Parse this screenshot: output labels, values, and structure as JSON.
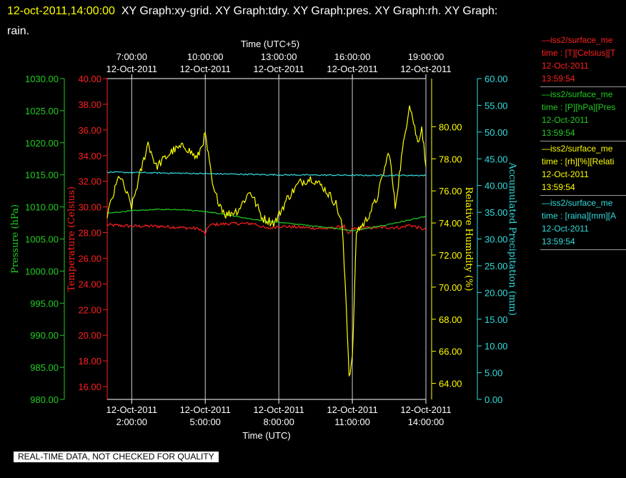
{
  "header": {
    "timestamp": "12-oct-2011,14:00:00",
    "graphs": "XY Graph:xy-grid.  XY Graph:tdry.  XY Graph:pres.  XY Graph:rh.  XY Graph:",
    "graphs_line2": "rain."
  },
  "disclaimer": "REAL-TIME DATA, NOT CHECKED FOR QUALITY",
  "legend": [
    {
      "line": "—iss2/surface_me",
      "desc": "time : [T][Celsius][T",
      "date": "12-Oct-2011",
      "time": "13:59:54",
      "color": "#ff2020"
    },
    {
      "line": "—iss2/surface_me",
      "desc": "time : [P][hPa][Pres",
      "date": "12-Oct-2011",
      "time": "13:59:54",
      "color": "#22cc22"
    },
    {
      "line": "—iss2/surface_me",
      "desc": "time : [rh][%][Relati",
      "date": "12-Oct-2011",
      "time": "13:59:54",
      "color": "#ffff00"
    },
    {
      "line": "—iss2/surface_me",
      "desc": "time : [raina][mm][A",
      "date": "12-Oct-2011",
      "time": "13:59:54",
      "color": "#33dddd"
    }
  ],
  "chart_data": {
    "type": "line",
    "grid": true,
    "x_bottom": {
      "label": "Time (UTC)",
      "range": [
        "2011-10-12 01:00",
        "2011-10-12 14:00"
      ],
      "ticks": [
        {
          "t": "2011-10-12 02:00",
          "date": "12-Oct-2011",
          "time": "2:00:00"
        },
        {
          "t": "2011-10-12 05:00",
          "date": "12-Oct-2011",
          "time": "5:00:00"
        },
        {
          "t": "2011-10-12 08:00",
          "date": "12-Oct-2011",
          "time": "8:00:00"
        },
        {
          "t": "2011-10-12 11:00",
          "date": "12-Oct-2011",
          "time": "11:00:00"
        },
        {
          "t": "2011-10-12 14:00",
          "date": "12-Oct-2011",
          "time": "14:00:00"
        }
      ]
    },
    "x_top": {
      "label": "Time (UTC+5)",
      "ticks": [
        {
          "t": "2011-10-12 02:00",
          "time": "7:00:00",
          "date": "12-Oct-2011"
        },
        {
          "t": "2011-10-12 05:00",
          "time": "10:00:00",
          "date": "12-Oct-2011"
        },
        {
          "t": "2011-10-12 08:00",
          "time": "13:00:00",
          "date": "12-Oct-2011"
        },
        {
          "t": "2011-10-12 11:00",
          "time": "16:00:00",
          "date": "12-Oct-2011"
        },
        {
          "t": "2011-10-12 14:00",
          "time": "19:00:00",
          "date": "12-Oct-2011"
        }
      ]
    },
    "y_axes": [
      {
        "id": "pressure",
        "label": "Pressure (hPa)",
        "color": "#22cc22",
        "range": [
          980,
          1030
        ],
        "ticks": [
          "980.00",
          "985.00",
          "990.00",
          "995.00",
          "1000.00",
          "1005.00",
          "1010.00",
          "1015.00",
          "1020.00",
          "1025.00",
          "1030.00"
        ]
      },
      {
        "id": "temperature",
        "label": "Temperature (Celsius)",
        "color": "#ff2020",
        "range": [
          15,
          40
        ],
        "ticks": [
          "16.00",
          "18.00",
          "20.00",
          "22.00",
          "24.00",
          "26.00",
          "28.00",
          "30.00",
          "32.00",
          "34.00",
          "36.00",
          "38.00",
          "40.00"
        ]
      },
      {
        "id": "rh",
        "label": "Relative Humidity (%)",
        "color": "#ffff00",
        "range": [
          63,
          83
        ],
        "ticks": [
          "64.00",
          "66.00",
          "68.00",
          "70.00",
          "72.00",
          "74.00",
          "76.00",
          "78.00",
          "80.00"
        ]
      },
      {
        "id": "precip",
        "label": "Accumulated Precipitation (mm)",
        "color": "#33dddd",
        "range": [
          0,
          60
        ],
        "ticks": [
          "0.00",
          "5.00",
          "10.00",
          "15.00",
          "20.00",
          "25.00",
          "30.00",
          "35.00",
          "40.00",
          "45.00",
          "50.00",
          "55.00",
          "60.00"
        ]
      }
    ],
    "series": [
      {
        "axis": "temperature",
        "color": "#ff2020",
        "noise": 0.12,
        "points": [
          [
            "2011-10-12 01:00",
            28.6
          ],
          [
            "2011-10-12 02:00",
            28.5
          ],
          [
            "2011-10-12 03:00",
            28.5
          ],
          [
            "2011-10-12 04:00",
            28.4
          ],
          [
            "2011-10-12 04:45",
            28.3
          ],
          [
            "2011-10-12 05:00",
            27.9
          ],
          [
            "2011-10-12 05:10",
            28.6
          ],
          [
            "2011-10-12 06:00",
            28.7
          ],
          [
            "2011-10-12 07:00",
            28.7
          ],
          [
            "2011-10-12 07:30",
            28.3
          ],
          [
            "2011-10-12 08:00",
            28.5
          ],
          [
            "2011-10-12 09:00",
            28.4
          ],
          [
            "2011-10-12 10:00",
            28.3
          ],
          [
            "2011-10-12 10:40",
            28.5
          ],
          [
            "2011-10-12 10:50",
            27.8
          ],
          [
            "2011-10-12 11:00",
            28.3
          ],
          [
            "2011-10-12 12:00",
            28.4
          ],
          [
            "2011-10-12 13:00",
            28.4
          ],
          [
            "2011-10-12 13:20",
            28.6
          ],
          [
            "2011-10-12 14:00",
            28.2
          ]
        ]
      },
      {
        "axis": "pressure",
        "color": "#22cc22",
        "noise": 0.04,
        "points": [
          [
            "2011-10-12 01:00",
            1009.0
          ],
          [
            "2011-10-12 02:00",
            1009.4
          ],
          [
            "2011-10-12 03:00",
            1009.6
          ],
          [
            "2011-10-12 04:00",
            1009.6
          ],
          [
            "2011-10-12 05:00",
            1009.3
          ],
          [
            "2011-10-12 06:00",
            1008.7
          ],
          [
            "2011-10-12 07:00",
            1008.0
          ],
          [
            "2011-10-12 08:00",
            1007.6
          ],
          [
            "2011-10-12 09:00",
            1007.2
          ],
          [
            "2011-10-12 10:00",
            1006.8
          ],
          [
            "2011-10-12 11:00",
            1006.3
          ],
          [
            "2011-10-12 12:00",
            1006.9
          ],
          [
            "2011-10-12 13:00",
            1007.7
          ],
          [
            "2011-10-12 14:00",
            1008.5
          ]
        ]
      },
      {
        "axis": "rh",
        "color": "#ffff00",
        "noise": 0.35,
        "points": [
          [
            "2011-10-12 01:00",
            74.5
          ],
          [
            "2011-10-12 01:30",
            77.0
          ],
          [
            "2011-10-12 02:00",
            75.0
          ],
          [
            "2011-10-12 02:40",
            79.0
          ],
          [
            "2011-10-12 03:00",
            77.5
          ],
          [
            "2011-10-12 03:40",
            78.5
          ],
          [
            "2011-10-12 04:10",
            78.8
          ],
          [
            "2011-10-12 04:40",
            78.0
          ],
          [
            "2011-10-12 05:00",
            79.5
          ],
          [
            "2011-10-12 05:20",
            76.0
          ],
          [
            "2011-10-12 05:50",
            74.5
          ],
          [
            "2011-10-12 06:20",
            74.8
          ],
          [
            "2011-10-12 06:50",
            76.0
          ],
          [
            "2011-10-12 07:20",
            74.3
          ],
          [
            "2011-10-12 07:50",
            74.0
          ],
          [
            "2011-10-12 08:20",
            75.5
          ],
          [
            "2011-10-12 08:50",
            76.5
          ],
          [
            "2011-10-12 09:20",
            76.8
          ],
          [
            "2011-10-12 09:50",
            76.2
          ],
          [
            "2011-10-12 10:20",
            75.2
          ],
          [
            "2011-10-12 10:35",
            73.8
          ],
          [
            "2011-10-12 10:45",
            69.0
          ],
          [
            "2011-10-12 10:52",
            64.5
          ],
          [
            "2011-10-12 11:00",
            65.5
          ],
          [
            "2011-10-12 11:10",
            73.5
          ],
          [
            "2011-10-12 11:30",
            74.0
          ],
          [
            "2011-10-12 12:00",
            75.5
          ],
          [
            "2011-10-12 12:30",
            78.5
          ],
          [
            "2011-10-12 12:45",
            75.0
          ],
          [
            "2011-10-12 13:00",
            78.0
          ],
          [
            "2011-10-12 13:20",
            81.5
          ],
          [
            "2011-10-12 13:40",
            79.0
          ],
          [
            "2011-10-12 13:50",
            80.0
          ],
          [
            "2011-10-12 14:00",
            77.5
          ]
        ]
      },
      {
        "axis": "precip",
        "color": "#33dddd",
        "noise": 0.05,
        "points": [
          [
            "2011-10-12 01:00",
            42.5
          ],
          [
            "2011-10-12 04:00",
            42.3
          ],
          [
            "2011-10-12 08:00",
            42.0
          ],
          [
            "2011-10-12 12:00",
            41.9
          ],
          [
            "2011-10-12 14:00",
            41.9
          ]
        ]
      }
    ]
  }
}
